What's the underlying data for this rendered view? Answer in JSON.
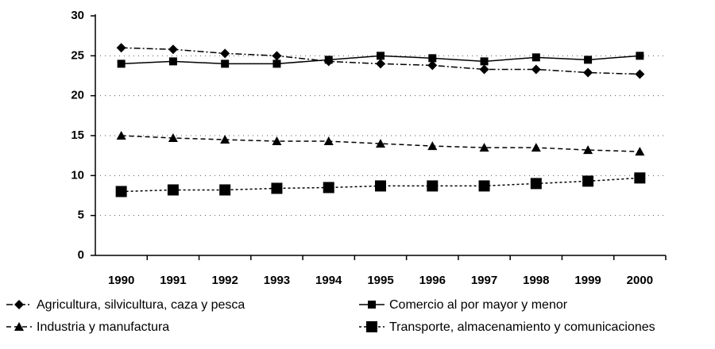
{
  "chart_data": {
    "type": "line",
    "categories": [
      "1990",
      "1991",
      "1992",
      "1993",
      "1994",
      "1995",
      "1996",
      "1997",
      "1998",
      "1999",
      "2000"
    ],
    "series": [
      {
        "name": "Agricultura, silvicultura, caza y pesca",
        "color": "#000000",
        "values": [
          26,
          25.8,
          25.3,
          25,
          24.3,
          24,
          23.8,
          23.3,
          23.3,
          22.9,
          22.7
        ]
      },
      {
        "name": "Comercio al por mayor y menor",
        "color": "#000000",
        "values": [
          24,
          24.3,
          24,
          24,
          24.5,
          25,
          24.7,
          24.3,
          24.8,
          24.5,
          25
        ]
      },
      {
        "name": "Industria y manufactura",
        "color": "#000000",
        "values": [
          15,
          14.7,
          14.5,
          14.3,
          14.3,
          14,
          13.7,
          13.5,
          13.5,
          13.2,
          13
        ]
      },
      {
        "name": "Transporte, almacenamiento y comunicaciones",
        "color": "#000000",
        "values": [
          8,
          8.2,
          8.2,
          8.4,
          8.5,
          8.7,
          8.7,
          8.7,
          9,
          9.3,
          9.7
        ]
      }
    ],
    "ylim": [
      0,
      30
    ],
    "yticks": [
      0,
      5,
      10,
      15,
      20,
      25,
      30
    ],
    "grid": true
  }
}
